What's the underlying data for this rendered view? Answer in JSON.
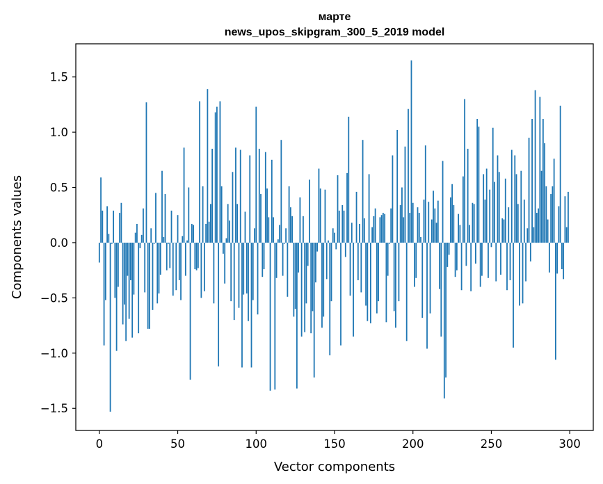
{
  "chart_data": {
    "type": "bar",
    "title_line1": "марте",
    "title_line2": "news_upos_skipgram_300_5_2019 model",
    "xlabel": "Vector components",
    "ylabel": "Components values",
    "xlim": [
      -15,
      315
    ],
    "ylim": [
      -1.7,
      1.8
    ],
    "xticks": [
      0,
      50,
      100,
      150,
      200,
      250,
      300
    ],
    "xtick_labels": [
      "0",
      "50",
      "100",
      "150",
      "200",
      "250",
      "300"
    ],
    "yticks": [
      -1.5,
      -1.0,
      -0.5,
      0.0,
      0.5,
      1.0,
      1.5
    ],
    "ytick_labels": [
      "−1.5",
      "−1.0",
      "−0.5",
      "0.0",
      "0.5",
      "1.0",
      "1.5"
    ],
    "color": "#1f77b4",
    "values": [
      -0.18,
      0.59,
      0.29,
      -0.93,
      -0.52,
      0.33,
      0.08,
      -1.53,
      -0.01,
      0.29,
      -0.5,
      -0.98,
      -0.4,
      0.27,
      0.36,
      -0.74,
      -0.56,
      -0.89,
      -0.3,
      -0.69,
      -0.34,
      -0.86,
      -0.47,
      0.09,
      0.17,
      -0.82,
      -0.05,
      0.07,
      0.31,
      -0.45,
      1.27,
      -0.78,
      -0.78,
      0.13,
      -0.61,
      -0.01,
      0.45,
      -0.55,
      -0.46,
      -0.29,
      0.65,
      0.05,
      0.44,
      -0.25,
      -0.01,
      -0.23,
      0.29,
      -0.48,
      0.0,
      -0.43,
      0.25,
      -0.34,
      -0.52,
      0.06,
      0.86,
      -0.3,
      0.02,
      0.5,
      -1.24,
      0.17,
      0.16,
      -0.24,
      -0.25,
      -0.23,
      1.28,
      -0.5,
      0.51,
      -0.44,
      0.17,
      1.39,
      0.19,
      0.35,
      0.85,
      -0.55,
      1.18,
      1.23,
      -1.12,
      1.28,
      0.51,
      -0.1,
      -0.37,
      0.04,
      0.35,
      0.2,
      -0.53,
      0.64,
      -0.7,
      0.86,
      0.35,
      -0.59,
      0.84,
      -1.13,
      -0.47,
      0.28,
      -0.46,
      -0.71,
      0.79,
      -1.13,
      -0.52,
      0.13,
      1.23,
      -0.65,
      0.85,
      0.44,
      -0.31,
      -0.24,
      0.82,
      0.49,
      0.23,
      -1.34,
      0.75,
      0.23,
      -1.33,
      -0.32,
      0.03,
      0.16,
      0.93,
      -0.3,
      -0.01,
      0.13,
      -0.49,
      0.51,
      0.32,
      0.24,
      -0.67,
      -0.6,
      -1.32,
      -0.27,
      0.41,
      -0.85,
      0.24,
      -0.81,
      -0.55,
      -0.21,
      0.57,
      -0.82,
      -0.62,
      -1.22,
      -0.36,
      -0.08,
      0.67,
      0.49,
      -0.77,
      -0.67,
      0.48,
      -0.33,
      0.02,
      -1.02,
      -0.53,
      0.13,
      0.09,
      -0.06,
      0.61,
      0.29,
      -0.93,
      0.34,
      0.29,
      -0.13,
      0.63,
      1.14,
      -0.48,
      0.18,
      -0.85,
      0.0,
      0.46,
      -0.34,
      0.17,
      -0.45,
      0.93,
      0.22,
      -0.57,
      -0.71,
      0.62,
      -0.73,
      0.14,
      0.24,
      0.31,
      -0.64,
      -0.53,
      0.23,
      0.25,
      0.27,
      0.26,
      -0.72,
      -0.3,
      -0.01,
      0.31,
      0.79,
      -0.62,
      -0.77,
      1.02,
      -0.53,
      0.34,
      0.5,
      0.23,
      0.87,
      -0.89,
      1.21,
      0.27,
      1.65,
      0.36,
      -0.4,
      -0.32,
      0.32,
      0.27,
      0.05,
      -0.68,
      0.39,
      0.88,
      -0.96,
      0.37,
      -0.64,
      0.21,
      0.47,
      0.31,
      0.18,
      0.38,
      -0.42,
      -0.85,
      0.74,
      -1.41,
      -1.22,
      -0.22,
      -0.11,
      0.41,
      0.53,
      0.34,
      -0.31,
      -0.25,
      0.26,
      0.16,
      -0.43,
      0.6,
      1.3,
      -0.21,
      0.85,
      0.16,
      -0.44,
      0.36,
      0.35,
      -0.19,
      1.12,
      1.05,
      -0.4,
      -0.3,
      0.62,
      0.39,
      0.67,
      -0.32,
      0.48,
      -0.04,
      1.04,
      0.55,
      -0.35,
      0.79,
      0.64,
      -0.29,
      0.22,
      0.21,
      0.58,
      -0.43,
      0.32,
      -0.34,
      0.84,
      -0.95,
      0.79,
      0.62,
      0.35,
      -0.57,
      0.65,
      -0.55,
      0.39,
      -0.35,
      0.13,
      0.95,
      -0.17,
      1.12,
      0.14,
      1.38,
      0.27,
      0.31,
      1.32,
      0.65,
      1.12,
      0.9,
      0.51,
      0.21,
      -0.27,
      0.44,
      0.51,
      0.76,
      -1.06,
      -0.28,
      0.33,
      1.24,
      -0.24,
      -0.33,
      0.42,
      0.14,
      0.46
    ]
  }
}
